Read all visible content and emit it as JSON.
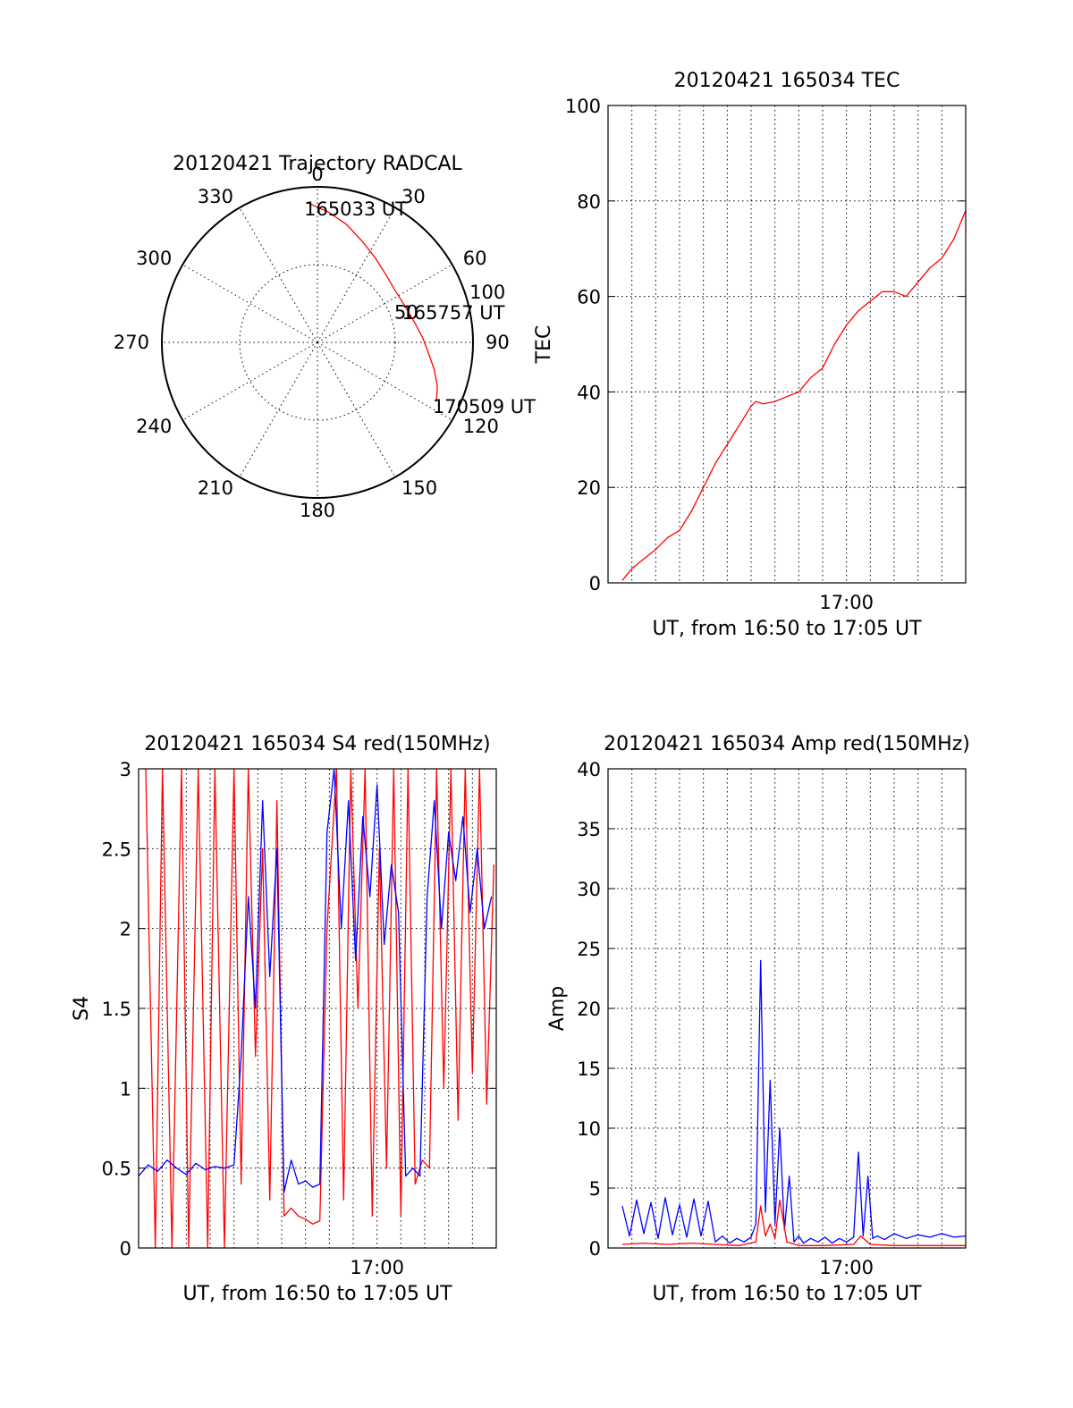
{
  "chart_data": [
    {
      "type": "polar",
      "title": "20120421 Trajectory RADCAL",
      "azimuth_labels": [
        "0",
        "30",
        "60",
        "90",
        "120",
        "150",
        "180",
        "210",
        "240",
        "270",
        "300",
        "330"
      ],
      "radial_labels": [
        "50",
        "100"
      ],
      "rlim": [
        0,
        100
      ],
      "grid": true,
      "trajectory": [
        {
          "az": 356,
          "r": 90
        },
        {
          "az": 5,
          "r": 84
        },
        {
          "az": 14,
          "r": 78
        },
        {
          "az": 24,
          "r": 71
        },
        {
          "az": 34,
          "r": 66
        },
        {
          "az": 45,
          "r": 62
        },
        {
          "az": 57,
          "r": 60
        },
        {
          "az": 68,
          "r": 61
        },
        {
          "az": 79,
          "r": 64
        },
        {
          "az": 88,
          "r": 68
        },
        {
          "az": 96,
          "r": 72
        },
        {
          "az": 103,
          "r": 77
        },
        {
          "az": 110,
          "r": 82
        },
        {
          "az": 114,
          "r": 84
        },
        {
          "az": 116,
          "r": 85
        }
      ],
      "annotations": [
        {
          "label": "165033 UT",
          "az": 356,
          "r": 90
        },
        {
          "label": "165757 UT",
          "az": 68,
          "r": 61
        },
        {
          "label": "170509 UT",
          "az": 116,
          "r": 85
        }
      ],
      "trajectory_color": "#ff0000"
    },
    {
      "type": "line",
      "title": "20120421 165034 TEC",
      "xlabel": "UT, from 16:50 to 17:05 UT",
      "ylabel": "TEC",
      "xlim": [
        0,
        15
      ],
      "ylim": [
        0,
        100
      ],
      "yticks": [
        "0",
        "20",
        "40",
        "60",
        "80",
        "100"
      ],
      "xticks": [
        {
          "value": 10,
          "label": "17:00"
        }
      ],
      "grid": true,
      "series": [
        {
          "color": "#ff0000",
          "x": [
            0.6,
            1.0,
            1.5,
            2.0,
            2.5,
            3.0,
            3.5,
            4.0,
            4.5,
            5.0,
            5.5,
            6.0,
            6.2,
            6.5,
            7.0,
            7.5,
            8.0,
            8.5,
            9.0,
            9.5,
            10.0,
            10.5,
            11.0,
            11.5,
            12.0,
            12.5,
            13.0,
            13.5,
            14.0,
            14.5,
            15.0
          ],
          "y": [
            0.5,
            3,
            5,
            7,
            9.5,
            11,
            15,
            20,
            25,
            29,
            33,
            37,
            38,
            37.5,
            38,
            39,
            40,
            43,
            45,
            50,
            54,
            57,
            59,
            61,
            61,
            60,
            63,
            66,
            68,
            72,
            78
          ]
        }
      ]
    },
    {
      "type": "line",
      "title": "20120421 165034 S4 red(150MHz)",
      "xlabel": "UT, from 16:50 to 17:05 UT",
      "ylabel": "S4",
      "xlim": [
        0,
        15
      ],
      "ylim": [
        0,
        3
      ],
      "yticks": [
        "0",
        "0.5",
        "1",
        "1.5",
        "2",
        "2.5",
        "3"
      ],
      "xticks": [
        {
          "value": 10,
          "label": "17:00"
        }
      ],
      "grid": true,
      "series": [
        {
          "color": "#ff0000",
          "x": [
            0.3,
            0.7,
            1.0,
            1.4,
            1.8,
            2.1,
            2.5,
            2.9,
            3.2,
            3.6,
            4.0,
            4.3,
            4.6,
            4.9,
            5.2,
            5.5,
            5.8,
            6.1,
            6.4,
            6.7,
            7.0,
            7.3,
            7.6,
            7.9,
            8.3,
            8.6,
            8.9,
            9.2,
            9.5,
            9.8,
            10.1,
            10.4,
            10.7,
            11.0,
            11.3,
            11.6,
            11.9,
            12.2,
            12.5,
            12.8,
            13.1,
            13.4,
            13.7,
            14.0,
            14.3,
            14.6,
            14.9
          ],
          "y": [
            3,
            0,
            3,
            0,
            3,
            0,
            3,
            0,
            3,
            0,
            3,
            0.4,
            3,
            1.2,
            2.5,
            0.3,
            2.8,
            0.2,
            0.25,
            0.2,
            0.18,
            0.15,
            0.17,
            2.0,
            3,
            0.3,
            3,
            1.5,
            3,
            0.2,
            2.5,
            0.5,
            3,
            0.2,
            3,
            0.4,
            0.55,
            0.5,
            3,
            1.0,
            3,
            0.8,
            3,
            1.1,
            3,
            0.9,
            2.4
          ]
        },
        {
          "color": "#0000ff",
          "x": [
            0.0,
            0.4,
            0.8,
            1.2,
            1.6,
            2.0,
            2.4,
            2.8,
            3.2,
            3.6,
            4.0,
            4.3,
            4.6,
            4.9,
            5.2,
            5.5,
            5.8,
            6.1,
            6.4,
            6.7,
            7.0,
            7.3,
            7.6,
            7.9,
            8.2,
            8.5,
            8.8,
            9.1,
            9.4,
            9.7,
            10.0,
            10.3,
            10.6,
            10.9,
            11.2,
            11.5,
            11.8,
            12.1,
            12.4,
            12.7,
            13.0,
            13.3,
            13.6,
            13.9,
            14.2,
            14.5,
            14.8
          ],
          "y": [
            0.45,
            0.52,
            0.48,
            0.55,
            0.5,
            0.46,
            0.53,
            0.49,
            0.51,
            0.5,
            0.52,
            1.2,
            2.2,
            1.5,
            2.8,
            1.7,
            2.5,
            0.35,
            0.55,
            0.4,
            0.42,
            0.38,
            0.4,
            2.6,
            3,
            2.0,
            2.8,
            1.8,
            2.7,
            2.2,
            2.9,
            1.9,
            2.4,
            2.1,
            0.45,
            0.5,
            0.45,
            2.2,
            2.8,
            2.0,
            2.6,
            2.3,
            2.7,
            2.1,
            2.5,
            2.0,
            2.2
          ]
        }
      ]
    },
    {
      "type": "line",
      "title": "20120421 165034 Amp red(150MHz)",
      "xlabel": "UT, from 16:50 to 17:05 UT",
      "ylabel": "Amp",
      "xlim": [
        0,
        15
      ],
      "ylim": [
        0,
        40
      ],
      "yticks": [
        "0",
        "5",
        "10",
        "15",
        "20",
        "25",
        "30",
        "35",
        "40"
      ],
      "xticks": [
        {
          "value": 10,
          "label": "17:00"
        }
      ],
      "grid": true,
      "series": [
        {
          "color": "#0000ff",
          "x": [
            0.6,
            0.9,
            1.2,
            1.5,
            1.8,
            2.1,
            2.4,
            2.7,
            3.0,
            3.3,
            3.6,
            3.9,
            4.2,
            4.5,
            4.8,
            5.1,
            5.4,
            5.7,
            6.0,
            6.2,
            6.4,
            6.6,
            6.8,
            7.0,
            7.2,
            7.4,
            7.6,
            7.8,
            8.0,
            8.2,
            8.5,
            8.8,
            9.1,
            9.4,
            9.7,
            10.0,
            10.3,
            10.5,
            10.7,
            10.9,
            11.1,
            11.3,
            11.6,
            12.0,
            12.5,
            13.0,
            13.5,
            14.0,
            14.5,
            15.0
          ],
          "y": [
            3.5,
            1.0,
            4.0,
            1.2,
            3.8,
            0.8,
            4.2,
            1.1,
            3.6,
            0.9,
            4.1,
            1.0,
            3.9,
            0.5,
            1.0,
            0.4,
            0.8,
            0.5,
            0.9,
            2.0,
            24,
            3.0,
            14,
            2.0,
            10,
            1.5,
            6,
            0.5,
            1.0,
            0.4,
            0.8,
            0.5,
            0.9,
            0.4,
            0.8,
            0.5,
            0.9,
            8,
            1.0,
            6,
            0.8,
            1.0,
            0.7,
            1.2,
            0.8,
            1.1,
            0.9,
            1.2,
            0.9,
            1.0
          ]
        },
        {
          "color": "#ff0000",
          "x": [
            0.6,
            1.5,
            2.5,
            3.5,
            4.5,
            5.5,
            6.2,
            6.4,
            6.6,
            6.8,
            7.0,
            7.2,
            7.5,
            8.0,
            9.0,
            10.3,
            10.6,
            11.0,
            12.0,
            13.0,
            14.0,
            15.0
          ],
          "y": [
            0.3,
            0.4,
            0.3,
            0.4,
            0.3,
            0.2,
            0.5,
            3.5,
            1.0,
            2.0,
            0.8,
            4.0,
            0.5,
            0.2,
            0.2,
            0.3,
            1.0,
            0.3,
            0.2,
            0.2,
            0.2,
            0.2
          ]
        }
      ]
    }
  ]
}
